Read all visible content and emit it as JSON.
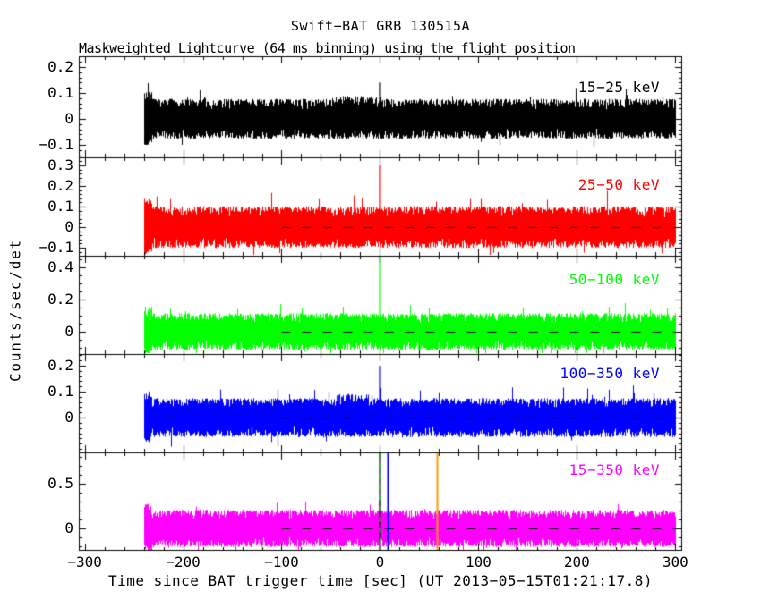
{
  "figure": {
    "title": "Swift−BAT GRB 130515A",
    "subtitle": "Maskweighted Lightcurve (64 ms binning) using the flight position",
    "y_axis_label": "Counts/sec/det",
    "x_axis_label": "Time since BAT trigger time [sec] (UT 2013−05−15T01:21:17.8)"
  },
  "chart_data": {
    "type": "line",
    "description": "Five stacked mask-weighted BAT light-curve panels (one per energy band). Each shows 64 ms binned noise around 0 counts/sec/det from t=-240 s to t=+300 s with a short spike at the trigger time t=0. A black dashed zero-level baseline runs from t=-100 s to the right edge. The bottom panel has vertical marker lines at t=0 (green dashed), t=+8 (blue) and t=+58 (orange).",
    "x": {
      "label": "Time since BAT trigger time [sec]",
      "lim": [
        -306,
        307
      ],
      "major_ticks": [
        -300,
        -200,
        -100,
        0,
        100,
        200,
        300
      ],
      "major_tick_labels": [
        "−300",
        "−200",
        "−100",
        "0",
        "100",
        "200",
        "300"
      ],
      "minor_tick_step": 20,
      "data_start": -240,
      "data_end": 300
    },
    "baseline": {
      "value": 0,
      "color": "#000000",
      "style": "dashed",
      "t_start": -100,
      "t_end": 307
    },
    "panels": [
      {
        "name": "15−25 keV",
        "color": "#000000",
        "ylim": [
          -0.148,
          0.241
        ],
        "ytick_values": [
          0.2,
          0.1,
          0,
          -0.1
        ],
        "ytick_labels": [
          "0.2",
          "0.1",
          "0",
          "−0.1"
        ],
        "y_minor_step": 0.02,
        "noise_amplitude": 0.072,
        "peak": {
          "t": 0,
          "value": 0.14
        },
        "show_baseline": false,
        "enhancement": {
          "t_start": -50,
          "t_end": 2,
          "factor": 1.15
        }
      },
      {
        "name": "25−50 keV",
        "color": "#FF0000",
        "ylim": [
          -0.139,
          0.339
        ],
        "ytick_values": [
          0.3,
          0.2,
          0.1,
          0,
          -0.1
        ],
        "ytick_labels": [
          "0.3",
          "0.2",
          "0.1",
          "0",
          "−0.1"
        ],
        "y_minor_step": 0.02,
        "noise_amplitude": 0.095,
        "peak": {
          "t": 0,
          "value": 0.3
        },
        "show_baseline": true
      },
      {
        "name": "50−100 keV",
        "color": "#00FF00",
        "ylim": [
          -0.139,
          0.472
        ],
        "ytick_values": [
          0.4,
          0.2,
          0
        ],
        "ytick_labels": [
          "0.4",
          "0.2",
          "0"
        ],
        "y_minor_step": 0.05,
        "noise_amplitude": 0.108,
        "peak": {
          "t": 0,
          "value": 0.5
        },
        "show_baseline": true
      },
      {
        "name": "100−350 keV",
        "color": "#0000FF",
        "ylim": [
          -0.134,
          0.245
        ],
        "ytick_values": [
          0.2,
          0.1,
          0
        ],
        "ytick_labels": [
          "0.2",
          "0.1",
          "0"
        ],
        "y_minor_step": 0.02,
        "noise_amplitude": 0.07,
        "peak": {
          "t": 0,
          "value": 0.2
        },
        "show_baseline": true,
        "enhancement": {
          "t_start": -45,
          "t_end": -8,
          "factor": 1.25
        }
      },
      {
        "name": "15−350 keV",
        "color": "#FF00FF",
        "ylim": [
          -0.25,
          0.85
        ],
        "ytick_values": [
          0.5,
          0
        ],
        "ytick_labels": [
          "0.5",
          "0"
        ],
        "y_minor_step": 0.1,
        "noise_amplitude": 0.195,
        "peak": {
          "t": 0,
          "value": 0.32
        },
        "show_baseline": true,
        "vlines": [
          {
            "t": 0,
            "color": "#00CC00",
            "style": "dashed"
          },
          {
            "t": 8,
            "color": "#0000FF",
            "style": "solid"
          },
          {
            "t": 58,
            "color": "#FF9900",
            "style": "solid"
          }
        ]
      }
    ]
  }
}
